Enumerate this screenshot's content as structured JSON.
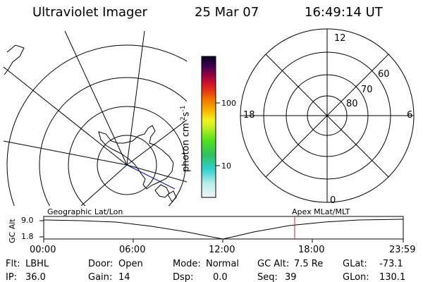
{
  "header": {
    "title": "Ultraviolet Imager",
    "date": "25 Mar 07",
    "time": "16:49:14 UT"
  },
  "colorbar": {
    "label": "photon cm",
    "exp1": "-2",
    "mid": "s",
    "exp2": "-1",
    "ticks": [
      "100",
      "10"
    ]
  },
  "polar_plot": {
    "mlt_labels": [
      "12",
      "18",
      "6",
      "0"
    ],
    "lat_labels": [
      "60",
      "70",
      "80"
    ]
  },
  "alt_plot": {
    "left_title": "Geographic Lat/Lon",
    "right_title": "Apex MLat/MLT",
    "ylabel": "GC Alt",
    "yticks": [
      "9.0",
      "1.8"
    ],
    "xticks": [
      "00:00",
      "06:00",
      "12:00",
      "18:00",
      "23:59"
    ]
  },
  "info": [
    {
      "label": "Flt:",
      "value": "LBHL"
    },
    {
      "label": "IP:",
      "value": "36.0"
    },
    {
      "label": "Door:",
      "value": "Open"
    },
    {
      "label": "Gain:",
      "value": "14"
    },
    {
      "label": "Mode:",
      "value": "Normal"
    },
    {
      "label": "Dsp:",
      "value": "0.0"
    },
    {
      "label": "GC Alt:",
      "value": "7.5 Re"
    },
    {
      "label": "Seq:",
      "value": "39"
    },
    {
      "label": "GLat:",
      "value": "-73.1"
    },
    {
      "label": "GLon:",
      "value": "130.1"
    }
  ],
  "colors": {
    "text": "#000000",
    "marker": "#d02020",
    "track": "#0000cc"
  }
}
